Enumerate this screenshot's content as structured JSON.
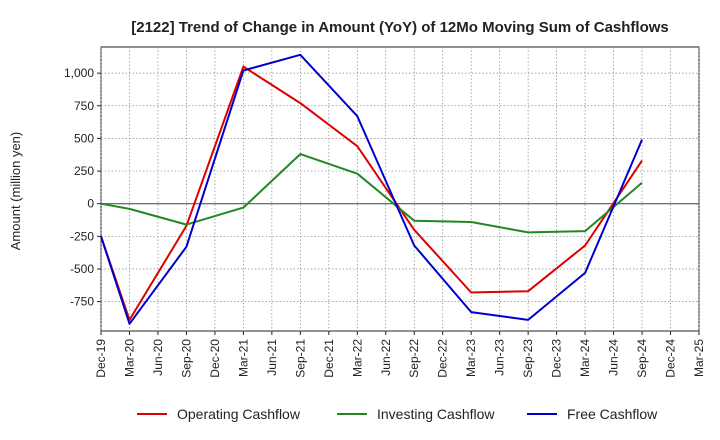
{
  "chart_data": {
    "type": "line",
    "title": "[2122]  Trend of Change in Amount (YoY) of 12Mo Moving Sum of Cashflows",
    "xlabel": "",
    "ylabel": "Amount (million yen)",
    "x": [
      "Dec-19",
      "Mar-20",
      "Jun-20",
      "Sep-20",
      "Dec-20",
      "Mar-21",
      "Jun-21",
      "Sep-21",
      "Dec-21",
      "Mar-22",
      "Jun-22",
      "Sep-22",
      "Dec-22",
      "Mar-23",
      "Jun-23",
      "Sep-23",
      "Dec-23",
      "Mar-24",
      "Jun-24",
      "Sep-24",
      "Dec-24",
      "Mar-25"
    ],
    "ylim": [
      -975,
      1200
    ],
    "yticks": [
      -750,
      -500,
      -250,
      0,
      250,
      500,
      750,
      1000
    ],
    "ytick_labels": [
      "-750",
      "-500",
      "-250",
      "0",
      "250",
      "500",
      "750",
      "1,000"
    ],
    "grid": true,
    "legend_position": "bottom",
    "series": [
      {
        "name": "Operating Cashflow",
        "color": "#dd0000",
        "values": [
          -250,
          -890,
          null,
          -170,
          null,
          1050,
          null,
          770,
          null,
          440,
          null,
          -200,
          null,
          -680,
          null,
          -670,
          null,
          -320,
          null,
          330,
          null,
          null
        ]
      },
      {
        "name": "Investing Cashflow",
        "color": "#228822",
        "values": [
          0,
          -40,
          null,
          -160,
          null,
          -30,
          null,
          380,
          null,
          230,
          null,
          -130,
          null,
          -140,
          null,
          -220,
          null,
          -210,
          null,
          160,
          null,
          null
        ]
      },
      {
        "name": "Free Cashflow",
        "color": "#0000cc",
        "values": [
          -250,
          -920,
          null,
          -330,
          null,
          1020,
          null,
          1140,
          null,
          670,
          null,
          -320,
          null,
          -830,
          null,
          -890,
          null,
          -530,
          null,
          490,
          null,
          null
        ]
      }
    ]
  }
}
